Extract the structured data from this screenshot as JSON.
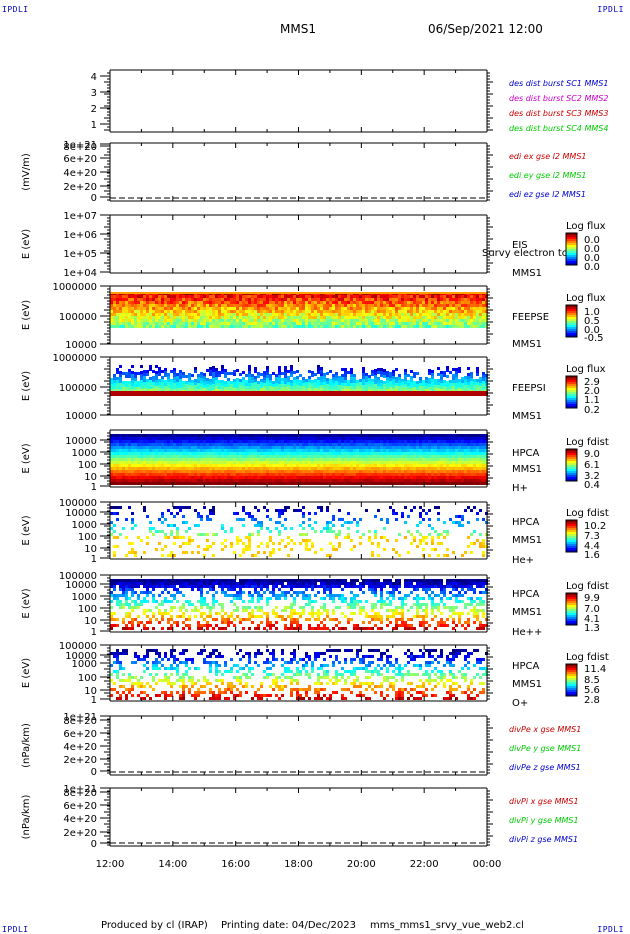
{
  "header": {
    "corner_label": "IPDLI",
    "spacecraft": "MMS1",
    "datetime": "06/Sep/2021 12:00"
  },
  "footer": {
    "produced_by": "Produced by cl (IRAP)",
    "printing_date": "Printing date: 04/Dec/2023",
    "filename": "mms_mms1_srvy_vue_web2.cl"
  },
  "chart_data": [
    {
      "type": "line",
      "panel": "dist-burst",
      "ytick_labels": [
        "1",
        "2",
        "3",
        "4"
      ],
      "ylim": [
        0.6,
        4.3
      ],
      "legend": [
        {
          "name": "des dist burst SC1 MMS1",
          "color": "#0000cc"
        },
        {
          "name": "des dist burst SC2 MMS2",
          "color": "#cc00cc"
        },
        {
          "name": "des dist burst SC3 MMS3",
          "color": "#cc0000"
        },
        {
          "name": "des dist burst SC4 MMS4",
          "color": "#00cc00"
        }
      ]
    },
    {
      "type": "line",
      "panel": "edi-e",
      "ylabel": "(mV/m)",
      "ytick_labels": [
        "0",
        "2e+20",
        "4e+20",
        "6e+20",
        "8e+20",
        "1e+21"
      ],
      "ylim": [
        0,
        1e+21
      ],
      "legend": [
        {
          "name": "edi ex gse l2 MMS1",
          "color": "#cc0000"
        },
        {
          "name": "edi ey gse l2 MMS1",
          "color": "#00cc00"
        },
        {
          "name": "edi ez gse l2 MMS1",
          "color": "#0000cc"
        }
      ]
    },
    {
      "type": "heatmap",
      "panel": "eis",
      "ylabel": "E (eV)",
      "ytick_labels": [
        "1e+04",
        "1e+05",
        "1e+06",
        "1e+07"
      ],
      "yscale": "log",
      "ylim": [
        10000,
        10000000
      ],
      "instrument_labels": [
        "EIS",
        "MMS1"
      ],
      "overlay_text": "Survy electron tof",
      "colorbar_title": "Log flux",
      "colorbar_ticks": [
        "0.0",
        "0.0",
        "0.0",
        "0.0"
      ]
    },
    {
      "type": "heatmap",
      "panel": "feepse",
      "ylabel": "E (eV)",
      "ytick_labels": [
        "10000",
        "100000",
        "1000000"
      ],
      "yscale": "log",
      "ylim": [
        10000,
        1000000
      ],
      "instrument_labels": [
        "FEEPSE",
        "MMS1"
      ],
      "colorbar_title": "Log flux",
      "colorbar_ticks": [
        "1.0",
        "0.5",
        "0.0",
        "-0.5"
      ]
    },
    {
      "type": "heatmap",
      "panel": "feepsi",
      "ylabel": "E (eV)",
      "ytick_labels": [
        "10000",
        "100000",
        "1000000"
      ],
      "yscale": "log",
      "ylim": [
        10000,
        1000000
      ],
      "instrument_labels": [
        "FEEPSI",
        "MMS1"
      ],
      "colorbar_title": "Log flux",
      "colorbar_ticks": [
        "2.9",
        "2.0",
        "1.1",
        "0.2"
      ]
    },
    {
      "type": "heatmap",
      "panel": "hpca-h",
      "ylabel": "E (eV)",
      "ytick_labels": [
        "1",
        "10",
        "100",
        "1000",
        "10000"
      ],
      "yscale": "log",
      "ylim": [
        1,
        30000
      ],
      "instrument_labels": [
        "HPCA",
        "MMS1",
        "H+"
      ],
      "colorbar_title": "Log fdist",
      "colorbar_ticks": [
        "9.0",
        "6.1",
        "3.2",
        "0.4"
      ]
    },
    {
      "type": "heatmap",
      "panel": "hpca-he",
      "ylabel": "E (eV)",
      "ytick_labels": [
        "1",
        "10",
        "100",
        "1000",
        "10000",
        "100000"
      ],
      "yscale": "log",
      "ylim": [
        1,
        100000
      ],
      "instrument_labels": [
        "HPCA",
        "MMS1",
        "He+"
      ],
      "colorbar_title": "Log fdist",
      "colorbar_ticks": [
        "10.2",
        "7.3",
        "4.4",
        "1.6"
      ]
    },
    {
      "type": "heatmap",
      "panel": "hpca-he2",
      "ylabel": "E (eV)",
      "ytick_labels": [
        "1",
        "10",
        "100",
        "1000",
        "10000",
        "100000"
      ],
      "yscale": "log",
      "ylim": [
        1,
        100000
      ],
      "instrument_labels": [
        "HPCA",
        "MMS1",
        "He++"
      ],
      "colorbar_title": "Log fdist",
      "colorbar_ticks": [
        "9.9",
        "7.0",
        "4.1",
        "1.3"
      ]
    },
    {
      "type": "heatmap",
      "panel": "hpca-o",
      "ylabel": "E (eV)",
      "ytick_labels": [
        "1",
        "10",
        "100",
        "1000",
        "10000",
        "100000"
      ],
      "yscale": "log",
      "ylim": [
        1,
        100000
      ],
      "instrument_labels": [
        "HPCA",
        "MMS1",
        "O+"
      ],
      "colorbar_title": "Log fdist",
      "colorbar_ticks": [
        "11.4",
        "8.5",
        "5.6",
        "2.8"
      ]
    },
    {
      "type": "line",
      "panel": "divpe",
      "ylabel": "(nPa/km)",
      "ytick_labels": [
        "0",
        "2e+20",
        "4e+20",
        "6e+20",
        "8e+20",
        "1e+21"
      ],
      "ylim": [
        0,
        1e+21
      ],
      "legend": [
        {
          "name": "divPe x gse MMS1",
          "color": "#cc0000"
        },
        {
          "name": "divPe y gse MMS1",
          "color": "#00cc00"
        },
        {
          "name": "divPe z gse MMS1",
          "color": "#0000cc"
        }
      ]
    },
    {
      "type": "line",
      "panel": "divpi",
      "ylabel": "(nPa/km)",
      "ytick_labels": [
        "0",
        "2e+20",
        "4e+20",
        "6e+20",
        "8e+20",
        "1e+21"
      ],
      "ylim": [
        0,
        1e+21
      ],
      "legend": [
        {
          "name": "divPi x gse MMS1",
          "color": "#cc0000"
        },
        {
          "name": "divPi y gse MMS1",
          "color": "#00cc00"
        },
        {
          "name": "divPi z gse MMS1",
          "color": "#0000cc"
        }
      ]
    }
  ],
  "x_axis": {
    "tick_labels": [
      "12:00",
      "14:00",
      "16:00",
      "18:00",
      "20:00",
      "22:00",
      "00:00"
    ]
  }
}
